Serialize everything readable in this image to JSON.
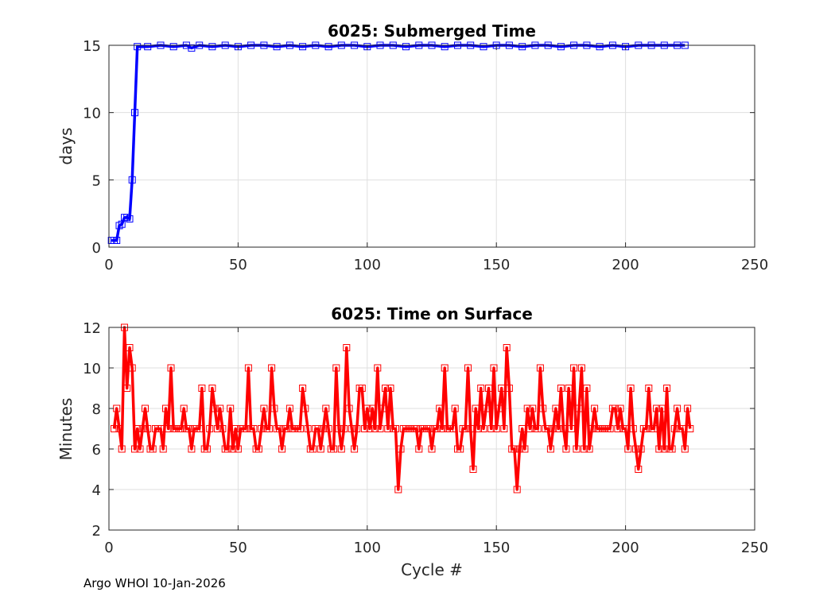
{
  "footer": "Argo WHOI 10-Jan-2026",
  "chart_data": [
    {
      "type": "line",
      "title": "6025: Submerged Time",
      "xlabel": "",
      "ylabel": "days",
      "xlim": [
        0,
        250
      ],
      "ylim": [
        0,
        15
      ],
      "xticks": [
        0,
        50,
        100,
        150,
        200,
        250
      ],
      "yticks": [
        0,
        5,
        10,
        15
      ],
      "grid": true,
      "color": "#0000ff",
      "marker": "square",
      "series": [
        {
          "x": [
            1,
            2,
            3,
            4,
            5,
            6,
            7,
            8,
            9,
            10,
            11,
            15,
            20,
            25,
            30,
            32,
            35,
            40,
            45,
            50,
            55,
            60,
            65,
            70,
            75,
            80,
            85,
            90,
            95,
            100,
            105,
            110,
            115,
            120,
            125,
            130,
            135,
            140,
            145,
            150,
            155,
            160,
            165,
            170,
            175,
            180,
            185,
            190,
            195,
            200,
            205,
            210,
            215,
            220,
            223
          ],
          "y": [
            0.5,
            0.5,
            0.5,
            1.6,
            1.7,
            2.2,
            2.2,
            2.1,
            5,
            10,
            14.9,
            14.9,
            15,
            14.9,
            15,
            14.8,
            15,
            14.9,
            15,
            14.9,
            15,
            15,
            14.9,
            15,
            14.9,
            15,
            14.9,
            15,
            15,
            14.9,
            15,
            15,
            14.9,
            15,
            15,
            14.9,
            15,
            15,
            14.9,
            15,
            15,
            14.9,
            15,
            15,
            14.9,
            15,
            15,
            14.9,
            15,
            14.9,
            15,
            15,
            15,
            15,
            15
          ]
        }
      ]
    },
    {
      "type": "line",
      "title": "6025: Time on Surface",
      "xlabel": "Cycle #",
      "ylabel": "Minutes",
      "xlim": [
        0,
        250
      ],
      "ylim": [
        2,
        12
      ],
      "xticks": [
        0,
        50,
        100,
        150,
        200,
        250
      ],
      "yticks": [
        2,
        4,
        6,
        8,
        10,
        12
      ],
      "grid": true,
      "color": "#ff0000",
      "marker": "square",
      "series": [
        {
          "x_start": 2,
          "y": [
            7,
            8,
            7,
            6,
            12,
            9,
            11,
            10,
            6,
            7,
            6,
            7,
            8,
            7,
            6,
            6,
            7,
            7,
            7,
            6,
            8,
            7,
            10,
            7,
            7,
            7,
            7,
            8,
            7,
            7,
            6,
            7,
            7,
            7,
            9,
            6,
            6,
            7,
            9,
            8,
            7,
            8,
            7,
            6,
            6,
            8,
            6,
            7,
            6,
            7,
            7,
            7,
            10,
            7,
            7,
            6,
            6,
            7,
            8,
            7,
            7,
            10,
            8,
            7,
            7,
            6,
            7,
            7,
            8,
            7,
            7,
            7,
            7,
            9,
            8,
            7,
            6,
            6,
            7,
            7,
            6,
            7,
            8,
            7,
            6,
            6,
            10,
            7,
            6,
            7,
            11,
            8,
            7,
            6,
            7,
            9,
            9,
            7,
            8,
            7,
            8,
            7,
            10,
            7,
            8,
            9,
            7,
            9,
            7,
            7,
            4,
            6,
            7,
            7,
            7,
            7,
            7,
            7,
            6,
            7,
            7,
            7,
            7,
            6,
            7,
            7,
            8,
            7,
            10,
            7,
            7,
            7,
            8,
            6,
            6,
            7,
            7,
            10,
            7,
            5,
            8,
            7,
            9,
            7,
            8,
            9,
            7,
            10,
            7,
            8,
            9,
            7,
            11,
            9,
            6,
            6,
            4,
            6,
            7,
            6,
            8,
            7,
            8,
            7,
            7,
            10,
            8,
            7,
            7,
            6,
            7,
            8,
            7,
            9,
            7,
            6,
            9,
            7,
            10,
            6,
            8,
            10,
            6,
            9,
            6,
            7,
            8,
            7,
            7,
            7,
            7,
            7,
            7,
            8,
            8,
            7,
            8,
            7,
            7,
            6,
            9,
            7,
            6,
            5,
            6,
            7,
            7,
            9,
            7,
            7,
            8,
            6,
            8,
            6,
            9,
            6,
            6,
            7,
            8,
            7,
            7,
            6,
            8,
            7
          ]
        }
      ]
    }
  ]
}
